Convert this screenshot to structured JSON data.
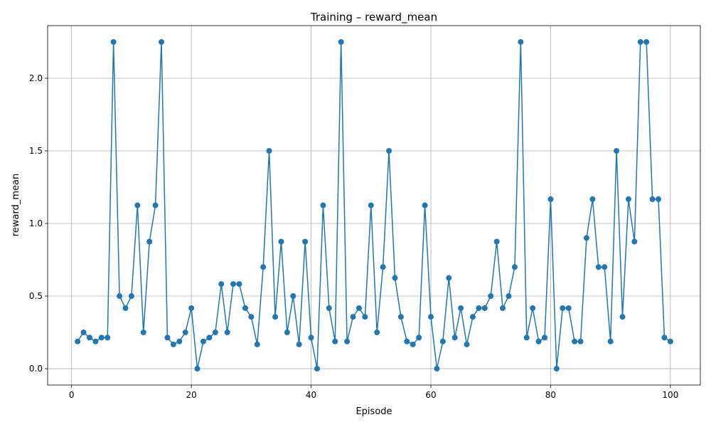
{
  "chart_data": {
    "type": "line",
    "title": "Training – reward_mean",
    "xlabel": "Episode",
    "ylabel": "reward_mean",
    "xlim": [
      -4,
      105
    ],
    "ylim": [
      -0.1125,
      2.3625
    ],
    "xticks": [
      0,
      20,
      40,
      60,
      80,
      100
    ],
    "yticks": [
      0.0,
      0.5,
      1.0,
      1.5,
      2.0
    ],
    "xtick_labels": [
      "0",
      "20",
      "40",
      "60",
      "80",
      "100"
    ],
    "ytick_labels": [
      "0.0",
      "0.5",
      "1.0",
      "1.5",
      "2.0"
    ],
    "grid": true,
    "legend": "none",
    "marker": "circle",
    "colors": {
      "series": "#1f77b4",
      "grid": "#b0b0b0",
      "axis": "#000000"
    },
    "series": [
      {
        "x": [
          1,
          2,
          3,
          4,
          5,
          6,
          7,
          8,
          9,
          10,
          11,
          12,
          13,
          14,
          15,
          16,
          17,
          18,
          19,
          20,
          21,
          22,
          23,
          24,
          25,
          26,
          27,
          28,
          29,
          30,
          31,
          32,
          33,
          34,
          35,
          36,
          37,
          38,
          39,
          40,
          41,
          42,
          43,
          44,
          45,
          46,
          47,
          48,
          49,
          50,
          51,
          52,
          53,
          54,
          55,
          56,
          57,
          58,
          59,
          60,
          61,
          62,
          63,
          64,
          65,
          66,
          67,
          68,
          69,
          70,
          71,
          72,
          73,
          74,
          75,
          76,
          77,
          78,
          79,
          80,
          81,
          82,
          83,
          84,
          85,
          86,
          87,
          88,
          89,
          90,
          91,
          92,
          93,
          94,
          95,
          96,
          97,
          98,
          99,
          100
        ],
        "values": [
          0.1875,
          0.25,
          0.214,
          0.1875,
          0.214,
          0.214,
          2.25,
          0.5,
          0.417,
          0.5,
          1.125,
          0.25,
          0.875,
          1.125,
          2.25,
          0.214,
          0.167,
          0.1875,
          0.25,
          0.417,
          0.0,
          0.1875,
          0.214,
          0.25,
          0.583,
          0.25,
          0.583,
          0.583,
          0.417,
          0.357,
          0.167,
          0.7,
          1.5,
          0.357,
          0.875,
          0.25,
          0.5,
          0.167,
          0.875,
          0.214,
          0.0,
          1.125,
          0.417,
          0.1875,
          2.25,
          0.1875,
          0.357,
          0.417,
          0.357,
          1.125,
          0.25,
          0.7,
          1.5,
          0.625,
          0.357,
          0.1875,
          0.167,
          0.214,
          1.125,
          0.357,
          0.0,
          0.1875,
          0.625,
          0.214,
          0.417,
          0.167,
          0.357,
          0.417,
          0.417,
          0.5,
          0.875,
          0.417,
          0.5,
          0.7,
          2.25,
          0.214,
          0.417,
          0.1875,
          0.214,
          1.167,
          0.0,
          0.417,
          0.417,
          0.1875,
          0.1875,
          0.9,
          1.167,
          0.7,
          0.7,
          0.1875,
          1.5,
          0.357,
          1.167,
          0.875,
          2.25,
          2.25,
          1.167,
          1.167,
          0.214,
          0.1875
        ]
      }
    ]
  }
}
